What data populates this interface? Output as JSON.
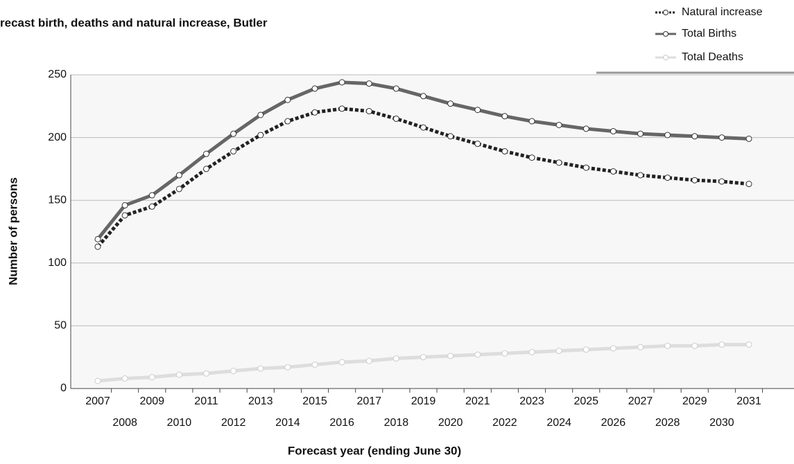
{
  "chart_data": {
    "type": "line",
    "title": "recast birth, deaths and natural increase, Butler",
    "x_label": "Forecast year (ending June 30)",
    "y_label": "Number of persons",
    "categories": [
      "2007",
      "2008",
      "2009",
      "2010",
      "2011",
      "2012",
      "2013",
      "2014",
      "2015",
      "2016",
      "2017",
      "2018",
      "2019",
      "2020",
      "2021",
      "2022",
      "2023",
      "2024",
      "2025",
      "2026",
      "2027",
      "2028",
      "2029",
      "2030",
      "2031"
    ],
    "series": [
      {
        "name": "Natural increase",
        "color": "#222222",
        "dash": true,
        "values": [
          113,
          138,
          145,
          159,
          175,
          189,
          202,
          213,
          220,
          223,
          221,
          215,
          208,
          201,
          195,
          189,
          184,
          180,
          176,
          173,
          170,
          168,
          166,
          165,
          163
        ]
      },
      {
        "name": "Total Births",
        "color": "#666666",
        "dash": false,
        "values": [
          119,
          146,
          154,
          170,
          187,
          203,
          218,
          230,
          239,
          244,
          243,
          239,
          233,
          227,
          222,
          217,
          213,
          210,
          207,
          205,
          203,
          202,
          201,
          200,
          199
        ]
      },
      {
        "name": "Total Deaths",
        "color": "#dddddd",
        "dash": false,
        "values": [
          6,
          8,
          9,
          11,
          12,
          14,
          16,
          17,
          19,
          21,
          22,
          24,
          25,
          26,
          27,
          28,
          29,
          30,
          31,
          32,
          33,
          34,
          34,
          35,
          35
        ]
      }
    ],
    "ylim": [
      0,
      250
    ],
    "yticks": [
      0,
      50,
      100,
      150,
      200,
      250
    ],
    "grid": true,
    "legend": "top-right"
  }
}
